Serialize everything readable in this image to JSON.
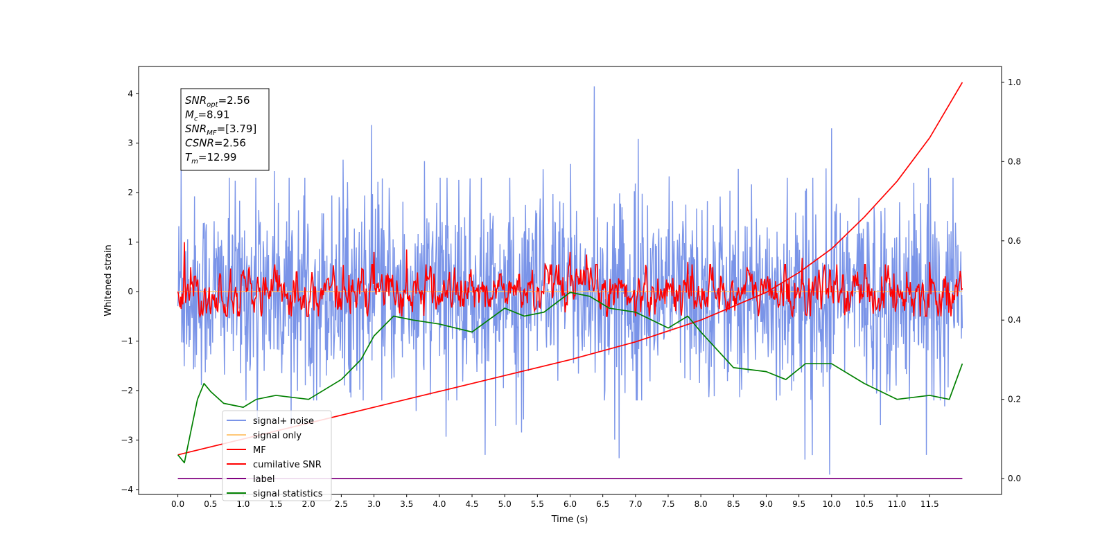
{
  "chart_data": {
    "type": "line",
    "xlabel": "Time (s)",
    "ylabel": "Whitened strain",
    "xlim": [
      -0.6,
      12.6
    ],
    "ylim": [
      -4.1,
      4.55
    ],
    "y2lim": [
      -0.04,
      1.04
    ],
    "x_ticks": [
      0.0,
      0.5,
      1.0,
      1.5,
      2.0,
      2.5,
      3.0,
      3.5,
      4.0,
      4.5,
      5.0,
      5.5,
      6.0,
      6.5,
      7.0,
      7.5,
      8.0,
      8.5,
      9.0,
      9.5,
      10.0,
      10.5,
      11.0,
      11.5
    ],
    "x_tick_labels": [
      "0.0",
      "0.5",
      "1.0",
      "1.5",
      "2.0",
      "2.5",
      "3.0",
      "3.5",
      "4.0",
      "4.5",
      "5.0",
      "5.5",
      "6.0",
      "6.5",
      "7.0",
      "7.5",
      "8.0",
      "8.5",
      "9.0",
      "9.5",
      "10.0",
      "10.5",
      "11.0",
      "11.5"
    ],
    "y_ticks": [
      -4,
      -3,
      -2,
      -1,
      0,
      1,
      2,
      3,
      4
    ],
    "y_tick_labels": [
      "−4",
      "−3",
      "−2",
      "−1",
      "0",
      "1",
      "2",
      "3",
      "4"
    ],
    "y2_ticks": [
      0.0,
      0.2,
      0.4,
      0.6,
      0.8,
      1.0
    ],
    "y2_tick_labels": [
      "0.0",
      "0.2",
      "0.4",
      "0.6",
      "0.8",
      "1.0"
    ],
    "stats_box": [
      {
        "base": "SNR",
        "sub": "opt",
        "value": "=2.56"
      },
      {
        "base": "M",
        "sub": "c",
        "value": "=8.91"
      },
      {
        "base": "SNR",
        "sub": "MF",
        "value": "=[3.79]"
      },
      {
        "base": "CSNR",
        "sub": "",
        "value": "=2.56"
      },
      {
        "base": "T",
        "sub": "m",
        "value": "=12.99"
      }
    ],
    "legend": {
      "location": "lower-left",
      "entries": [
        {
          "label": "signal+ noise",
          "color": "#7a94e8"
        },
        {
          "label": "signal only",
          "color": "#ffc877"
        },
        {
          "label": "MF",
          "color": "#ff0000"
        },
        {
          "label": "cumilative SNR",
          "color": "#ff0000"
        },
        {
          "label": "label",
          "color": "#800080"
        },
        {
          "label": "signal statistics",
          "color": "#008000"
        }
      ]
    },
    "series": [
      {
        "name": "signal+ noise",
        "axis": "left",
        "color": "#7a94e8",
        "x_range": [
          0.0,
          12.0
        ],
        "noise_envelope": {
          "typical_min": -2.2,
          "typical_max": 2.3,
          "extreme_min": -3.7,
          "extreme_max": 4.15
        }
      },
      {
        "name": "signal only",
        "axis": "left",
        "color": "#ffc877",
        "x_range": [
          0.0,
          12.0
        ],
        "approx_value": 0.0
      },
      {
        "name": "MF",
        "axis": "left",
        "color": "#ff0000",
        "x_range": [
          0.0,
          12.0
        ],
        "range": [
          -0.5,
          1.0
        ],
        "peaks": [
          [
            0.1,
            1.0
          ],
          [
            0.05,
            -0.35
          ],
          [
            3.0,
            0.8
          ],
          [
            3.5,
            0.85
          ],
          [
            6.0,
            0.8
          ],
          [
            6.25,
            0.75
          ],
          [
            7.8,
            0.6
          ],
          [
            9.55,
            0.68
          ],
          [
            11.5,
            0.6
          ]
        ]
      },
      {
        "name": "cumilative SNR",
        "axis": "right",
        "color": "#ff0000",
        "x": [
          0.0,
          1.0,
          2.0,
          3.0,
          4.0,
          5.0,
          6.0,
          7.0,
          8.0,
          9.0,
          9.5,
          10.0,
          10.5,
          11.0,
          11.5,
          12.0
        ],
        "y": [
          0.06,
          0.1,
          0.14,
          0.18,
          0.22,
          0.26,
          0.3,
          0.345,
          0.4,
          0.47,
          0.52,
          0.58,
          0.66,
          0.75,
          0.86,
          1.0
        ]
      },
      {
        "name": "label",
        "axis": "right",
        "color": "#800080",
        "x": [
          0.0,
          12.0
        ],
        "y": [
          0.0,
          0.0
        ]
      },
      {
        "name": "signal statistics",
        "axis": "right",
        "color": "#008000",
        "x": [
          0.0,
          0.1,
          0.3,
          0.4,
          0.5,
          0.7,
          1.0,
          1.2,
          1.5,
          2.0,
          2.5,
          2.8,
          3.0,
          3.3,
          3.6,
          4.0,
          4.5,
          5.0,
          5.3,
          5.6,
          6.0,
          6.3,
          6.6,
          7.0,
          7.5,
          7.8,
          8.0,
          8.5,
          9.0,
          9.3,
          9.6,
          10.0,
          10.5,
          11.0,
          11.5,
          11.8,
          12.0
        ],
        "y": [
          0.06,
          0.04,
          0.2,
          0.24,
          0.22,
          0.19,
          0.18,
          0.2,
          0.21,
          0.2,
          0.25,
          0.3,
          0.36,
          0.41,
          0.4,
          0.39,
          0.37,
          0.43,
          0.41,
          0.42,
          0.47,
          0.46,
          0.43,
          0.42,
          0.38,
          0.41,
          0.37,
          0.28,
          0.27,
          0.25,
          0.29,
          0.29,
          0.24,
          0.2,
          0.21,
          0.2,
          0.29
        ]
      }
    ]
  }
}
